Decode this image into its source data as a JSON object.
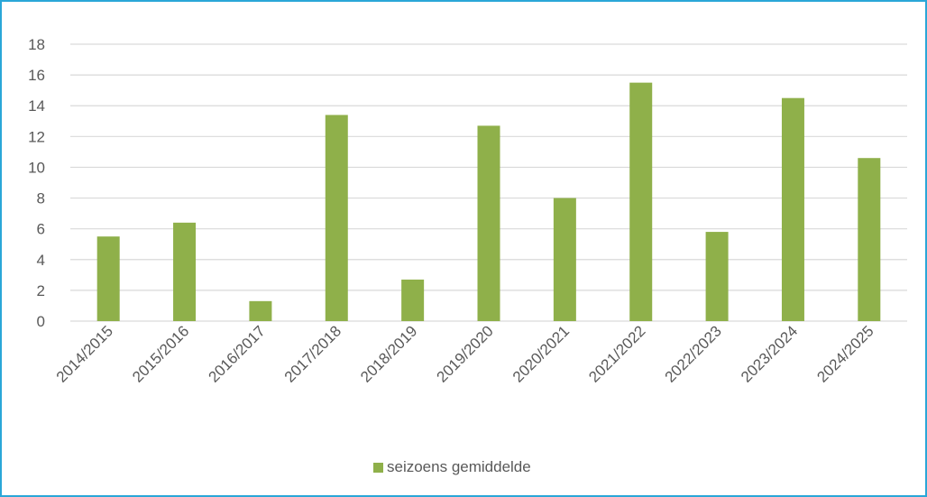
{
  "chart_data": {
    "type": "bar",
    "categories": [
      "2014/2015",
      "2015/2016",
      "2016/2017",
      "2017/2018",
      "2018/2019",
      "2019/2020",
      "2020/2021",
      "2021/2022",
      "2022/2023",
      "2023/2024",
      "2024/2025"
    ],
    "series": [
      {
        "name": "seizoens gemiddelde",
        "color": "#8fb04a",
        "values": [
          5.5,
          6.4,
          1.3,
          13.4,
          2.7,
          12.7,
          8.0,
          15.5,
          5.8,
          14.5,
          10.6
        ]
      }
    ],
    "title": "",
    "xlabel": "",
    "ylabel": "",
    "ylim": [
      0,
      18
    ],
    "yticks": [
      "0",
      "2",
      "4",
      "6",
      "8",
      "10",
      "12",
      "14",
      "16",
      "18"
    ],
    "grid": true,
    "legend_position": "bottom",
    "colors": {
      "border": "#2aa7d8",
      "grid": "#d9d9d9",
      "text": "#595959"
    }
  }
}
